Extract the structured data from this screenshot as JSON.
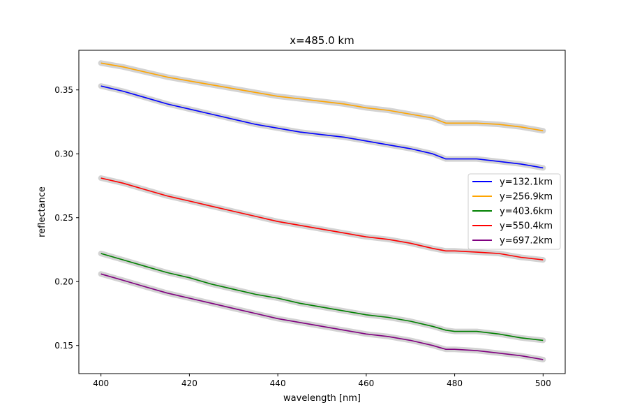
{
  "chart_data": {
    "type": "line",
    "title": "x=485.0 km",
    "xlabel": "wavelength [nm]",
    "ylabel": "reflectance",
    "xlim": [
      395,
      505
    ],
    "ylim": [
      0.128,
      0.381
    ],
    "xticks": [
      400,
      420,
      440,
      460,
      480,
      500
    ],
    "xtick_labels": [
      "400",
      "420",
      "440",
      "460",
      "480",
      "500"
    ],
    "yticks": [
      0.15,
      0.2,
      0.25,
      0.3,
      0.35
    ],
    "ytick_labels": [
      "0.15",
      "0.20",
      "0.25",
      "0.30",
      "0.35"
    ],
    "grid": false,
    "legend_placement": "center-right",
    "band_color": "#d3d3d3",
    "x": [
      400,
      405,
      410,
      415,
      420,
      425,
      430,
      435,
      440,
      445,
      450,
      455,
      460,
      465,
      470,
      475,
      478,
      480,
      485,
      490,
      495,
      500
    ],
    "series": [
      {
        "name": "y=132.1km",
        "color": "#0000ff",
        "values": [
          0.353,
          0.349,
          0.344,
          0.339,
          0.335,
          0.331,
          0.327,
          0.323,
          0.32,
          0.317,
          0.315,
          0.313,
          0.31,
          0.307,
          0.304,
          0.3,
          0.296,
          0.296,
          0.296,
          0.294,
          0.292,
          0.289
        ]
      },
      {
        "name": "y=256.9km",
        "color": "#ffa500",
        "values": [
          0.371,
          0.368,
          0.364,
          0.36,
          0.357,
          0.354,
          0.351,
          0.348,
          0.345,
          0.343,
          0.341,
          0.339,
          0.336,
          0.334,
          0.331,
          0.328,
          0.324,
          0.324,
          0.324,
          0.323,
          0.321,
          0.318
        ]
      },
      {
        "name": "y=403.6km",
        "color": "#008000",
        "values": [
          0.222,
          0.217,
          0.212,
          0.207,
          0.203,
          0.198,
          0.194,
          0.19,
          0.187,
          0.183,
          0.18,
          0.177,
          0.174,
          0.172,
          0.169,
          0.165,
          0.162,
          0.161,
          0.161,
          0.159,
          0.156,
          0.154
        ]
      },
      {
        "name": "y=550.4km",
        "color": "#ff0000",
        "values": [
          0.281,
          0.277,
          0.272,
          0.267,
          0.263,
          0.259,
          0.255,
          0.251,
          0.247,
          0.244,
          0.241,
          0.238,
          0.235,
          0.233,
          0.23,
          0.226,
          0.224,
          0.224,
          0.223,
          0.222,
          0.219,
          0.217
        ]
      },
      {
        "name": "y=697.2km",
        "color": "#800080",
        "values": [
          0.206,
          0.201,
          0.196,
          0.191,
          0.187,
          0.183,
          0.179,
          0.175,
          0.171,
          0.168,
          0.165,
          0.162,
          0.159,
          0.157,
          0.154,
          0.15,
          0.147,
          0.147,
          0.146,
          0.144,
          0.142,
          0.139
        ]
      }
    ]
  }
}
